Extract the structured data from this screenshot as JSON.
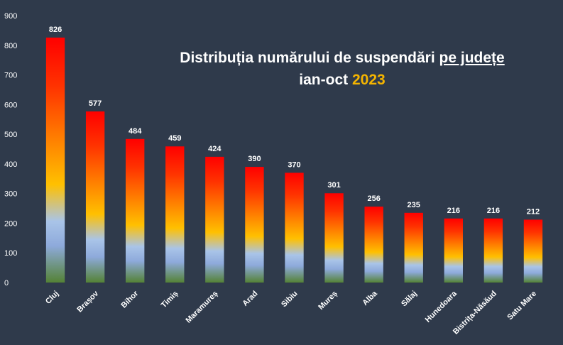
{
  "chart_data": {
    "type": "bar",
    "title": {
      "line1_prefix": "Distribuția numărului de suspendări",
      "line1_underlined": "pe județe",
      "line2_prefix": "ian-oct",
      "line2_year": "2023"
    },
    "xlabel": "",
    "ylabel": "",
    "ylim": [
      0,
      900
    ],
    "yticks": [
      0,
      100,
      200,
      300,
      400,
      500,
      600,
      700,
      800,
      900
    ],
    "grid": false,
    "legend": "none",
    "categories": [
      "Cluj",
      "Brașov",
      "Bihor",
      "Timiș",
      "Maramureș",
      "Arad",
      "Sibiu",
      "Mureș",
      "Alba",
      "Sălaj",
      "Hunedoara",
      "Bistrița-Năsăud",
      "Satu Mare"
    ],
    "values": [
      826,
      577,
      484,
      459,
      424,
      390,
      370,
      301,
      256,
      235,
      216,
      216,
      212
    ],
    "colors": {
      "background": "#2f3a4b",
      "text": "#ffffff",
      "title_year": "#f4b400",
      "bar_gradient": [
        "#ff0000",
        "#ff3300",
        "#ff8c00",
        "#ffc000",
        "#a9c4e8",
        "#8eaadb",
        "#548235"
      ]
    }
  }
}
